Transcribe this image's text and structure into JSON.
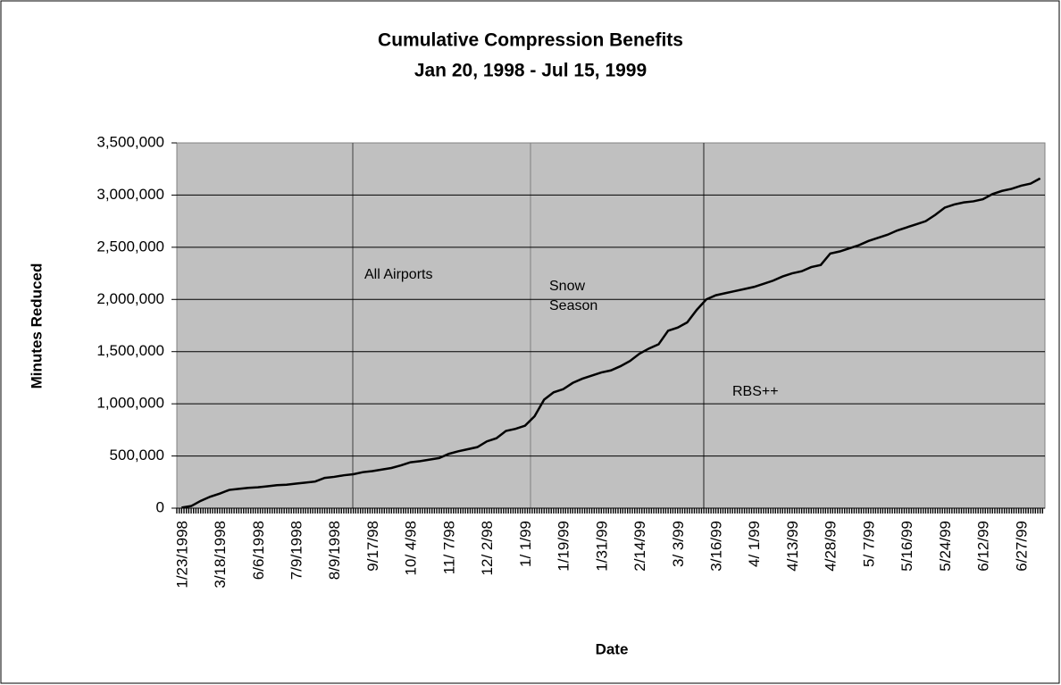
{
  "chart_data": {
    "type": "line",
    "title": "Cumulative Compression Benefits",
    "subtitle": "Jan 20, 1998 - Jul 15, 1999",
    "x_label": "Date",
    "y_label": "Minutes Reduced",
    "categories": [
      "1/23/1998",
      null,
      null,
      null,
      "3/18/1998",
      null,
      null,
      null,
      "6/6/1998",
      null,
      null,
      null,
      "7/9/1998",
      null,
      null,
      null,
      "8/9/1998",
      null,
      null,
      null,
      "9/17/98",
      null,
      null,
      null,
      "10/ 4/98",
      null,
      null,
      null,
      "11/ 7/98",
      null,
      null,
      null,
      "12/ 2/98",
      null,
      null,
      null,
      "1/ 1/99",
      null,
      null,
      null,
      "1/19/99",
      null,
      null,
      null,
      "1/31/99",
      null,
      null,
      null,
      "2/14/99",
      null,
      null,
      null,
      "3/ 3/99",
      null,
      null,
      null,
      "3/16/99",
      null,
      null,
      null,
      "4/ 1/99",
      null,
      null,
      null,
      "4/13/99",
      null,
      null,
      null,
      "4/28/99",
      null,
      null,
      null,
      "5/ 7/99",
      null,
      null,
      null,
      "5/16/99",
      null,
      null,
      null,
      "5/24/99",
      null,
      null,
      null,
      "6/12/99",
      null,
      null,
      null,
      "6/27/99",
      null,
      null
    ],
    "values": [
      5000,
      20000,
      70000,
      110000,
      140000,
      175000,
      185000,
      195000,
      200000,
      210000,
      220000,
      225000,
      235000,
      245000,
      255000,
      290000,
      300000,
      315000,
      325000,
      345000,
      355000,
      370000,
      385000,
      410000,
      440000,
      450000,
      465000,
      480000,
      520000,
      545000,
      565000,
      585000,
      640000,
      670000,
      740000,
      760000,
      790000,
      880000,
      1040000,
      1110000,
      1140000,
      1200000,
      1240000,
      1270000,
      1300000,
      1320000,
      1360000,
      1410000,
      1480000,
      1530000,
      1570000,
      1700000,
      1730000,
      1780000,
      1900000,
      2000000,
      2040000,
      2060000,
      2080000,
      2100000,
      2120000,
      2150000,
      2180000,
      2220000,
      2250000,
      2270000,
      2310000,
      2330000,
      2440000,
      2460000,
      2490000,
      2520000,
      2560000,
      2590000,
      2620000,
      2660000,
      2690000,
      2720000,
      2750000,
      2810000,
      2880000,
      2910000,
      2930000,
      2940000,
      2960000,
      3010000,
      3040000,
      3060000,
      3090000,
      3110000,
      3160000
    ],
    "color": "#000000",
    "ylim": [
      0,
      3500000
    ],
    "yticks": [
      0,
      {
        "value": 500000,
        "label": "500,000"
      },
      {
        "value": 1000000,
        "label": "1,000,000"
      },
      {
        "value": 1500000,
        "label": "1,500,000"
      },
      {
        "value": 2000000,
        "label": "2,000,000"
      },
      {
        "value": 2500000,
        "label": "2,500,000"
      },
      {
        "value": 3000000,
        "label": "3,000,000"
      },
      {
        "value": 3500000,
        "label": "3,500,000"
      }
    ],
    "grid": true,
    "annotations": [
      "All Airports",
      "Snow Season",
      "RBS++"
    ]
  }
}
